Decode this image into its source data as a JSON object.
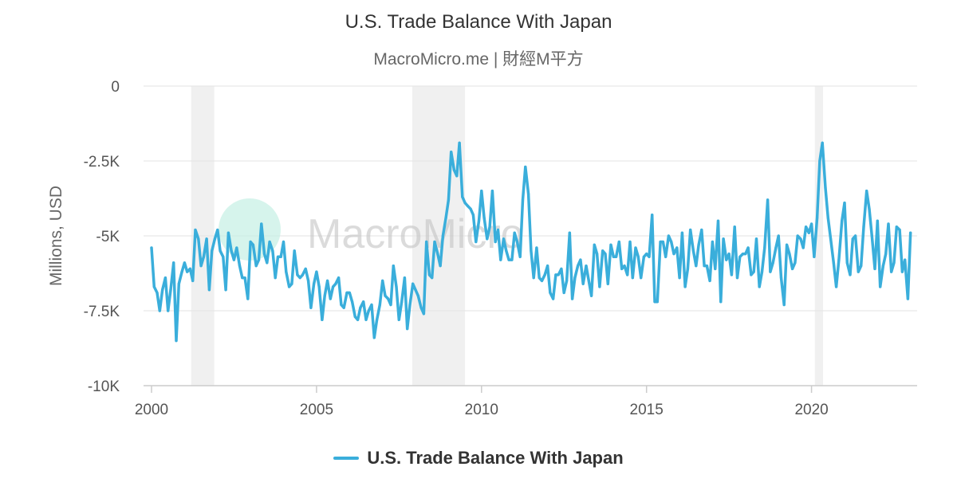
{
  "header": {
    "title": "U.S. Trade Balance With Japan",
    "subtitle": "MacroMicro.me | 財經M平方"
  },
  "watermark": {
    "text": "MacroMicro"
  },
  "legend": {
    "label": "U.S. Trade Balance With Japan"
  },
  "colors": {
    "series": "#3aaedb",
    "grid": "#e3e3e3",
    "recession": "#f0f0f0",
    "axis": "#cccccc",
    "logo": "#c8f0e6"
  },
  "chart_data": {
    "type": "line",
    "title": "U.S. Trade Balance With Japan",
    "subtitle": "MacroMicro.me | 財經M平方",
    "ylabel": "Millions, USD",
    "xlabel": "",
    "xlim": [
      2000,
      2023.2
    ],
    "ylim": [
      -10000,
      0
    ],
    "yticks": [
      0,
      -2500,
      -5000,
      -7500,
      -10000
    ],
    "ytick_labels": [
      "0",
      "-2.5K",
      "-5K",
      "-7.5K",
      "-10K"
    ],
    "xticks": [
      2000,
      2005,
      2010,
      2015,
      2020
    ],
    "xtick_labels": [
      "2000",
      "2005",
      "2010",
      "2015",
      "2020"
    ],
    "grid": true,
    "legend_position": "bottom-center",
    "recession_bands": [
      [
        2001.2,
        2001.9
      ],
      [
        2007.9,
        2009.5
      ],
      [
        2020.1,
        2020.35
      ]
    ],
    "series": [
      {
        "name": "U.S. Trade Balance With Japan",
        "x": [
          2000.0,
          2000.08,
          2000.17,
          2000.25,
          2000.33,
          2000.42,
          2000.5,
          2000.58,
          2000.67,
          2000.75,
          2000.83,
          2000.92,
          2001.0,
          2001.08,
          2001.17,
          2001.25,
          2001.33,
          2001.42,
          2001.5,
          2001.58,
          2001.67,
          2001.75,
          2001.83,
          2001.92,
          2002.0,
          2002.08,
          2002.17,
          2002.25,
          2002.33,
          2002.42,
          2002.5,
          2002.58,
          2002.67,
          2002.75,
          2002.83,
          2002.92,
          2003.0,
          2003.08,
          2003.17,
          2003.25,
          2003.33,
          2003.42,
          2003.5,
          2003.58,
          2003.67,
          2003.75,
          2003.83,
          2003.92,
          2004.0,
          2004.08,
          2004.17,
          2004.25,
          2004.33,
          2004.42,
          2004.5,
          2004.58,
          2004.67,
          2004.75,
          2004.83,
          2004.92,
          2005.0,
          2005.08,
          2005.17,
          2005.25,
          2005.33,
          2005.42,
          2005.5,
          2005.58,
          2005.67,
          2005.75,
          2005.83,
          2005.92,
          2006.0,
          2006.08,
          2006.17,
          2006.25,
          2006.33,
          2006.42,
          2006.5,
          2006.58,
          2006.67,
          2006.75,
          2006.83,
          2006.92,
          2007.0,
          2007.08,
          2007.17,
          2007.25,
          2007.33,
          2007.42,
          2007.5,
          2007.58,
          2007.67,
          2007.75,
          2007.83,
          2007.92,
          2008.0,
          2008.08,
          2008.17,
          2008.25,
          2008.33,
          2008.42,
          2008.5,
          2008.58,
          2008.67,
          2008.75,
          2008.83,
          2008.92,
          2009.0,
          2009.08,
          2009.17,
          2009.25,
          2009.33,
          2009.42,
          2009.5,
          2009.58,
          2009.67,
          2009.75,
          2009.83,
          2009.92,
          2010.0,
          2010.08,
          2010.17,
          2010.25,
          2010.33,
          2010.42,
          2010.5,
          2010.58,
          2010.67,
          2010.75,
          2010.83,
          2010.92,
          2011.0,
          2011.08,
          2011.17,
          2011.25,
          2011.33,
          2011.42,
          2011.5,
          2011.58,
          2011.67,
          2011.75,
          2011.83,
          2011.92,
          2012.0,
          2012.08,
          2012.17,
          2012.25,
          2012.33,
          2012.42,
          2012.5,
          2012.58,
          2012.67,
          2012.75,
          2012.83,
          2012.92,
          2013.0,
          2013.08,
          2013.17,
          2013.25,
          2013.33,
          2013.42,
          2013.5,
          2013.58,
          2013.67,
          2013.75,
          2013.83,
          2013.92,
          2014.0,
          2014.08,
          2014.17,
          2014.25,
          2014.33,
          2014.42,
          2014.5,
          2014.58,
          2014.67,
          2014.75,
          2014.83,
          2014.92,
          2015.0,
          2015.08,
          2015.17,
          2015.25,
          2015.33,
          2015.42,
          2015.5,
          2015.58,
          2015.67,
          2015.75,
          2015.83,
          2015.92,
          2016.0,
          2016.08,
          2016.17,
          2016.25,
          2016.33,
          2016.42,
          2016.5,
          2016.58,
          2016.67,
          2016.75,
          2016.83,
          2016.92,
          2017.0,
          2017.08,
          2017.17,
          2017.25,
          2017.33,
          2017.42,
          2017.5,
          2017.58,
          2017.67,
          2017.75,
          2017.83,
          2017.92,
          2018.0,
          2018.08,
          2018.17,
          2018.25,
          2018.33,
          2018.42,
          2018.5,
          2018.58,
          2018.67,
          2018.75,
          2018.83,
          2018.92,
          2019.0,
          2019.08,
          2019.17,
          2019.25,
          2019.33,
          2019.42,
          2019.5,
          2019.58,
          2019.67,
          2019.75,
          2019.83,
          2019.92,
          2020.0,
          2020.08,
          2020.17,
          2020.25,
          2020.33,
          2020.42,
          2020.5,
          2020.58,
          2020.67,
          2020.75,
          2020.83,
          2020.92,
          2021.0,
          2021.08,
          2021.17,
          2021.25,
          2021.33,
          2021.42,
          2021.5,
          2021.58,
          2021.67,
          2021.75,
          2021.83,
          2021.92,
          2022.0,
          2022.08,
          2022.17,
          2022.25,
          2022.33,
          2022.42,
          2022.5,
          2022.58,
          2022.67,
          2022.75,
          2022.83,
          2022.92,
          2023.0
        ],
        "values": [
          -5400,
          -6700,
          -6900,
          -7500,
          -6800,
          -6400,
          -7500,
          -6800,
          -5900,
          -8500,
          -6600,
          -6200,
          -5900,
          -6200,
          -6100,
          -6500,
          -4800,
          -5100,
          -6000,
          -5700,
          -5100,
          -6800,
          -5500,
          -5100,
          -4800,
          -5500,
          -5700,
          -6800,
          -4900,
          -5500,
          -5800,
          -5400,
          -6000,
          -6400,
          -6400,
          -7100,
          -5200,
          -5300,
          -6000,
          -5800,
          -4600,
          -5600,
          -5900,
          -5200,
          -5500,
          -6400,
          -5700,
          -5700,
          -5200,
          -6200,
          -6700,
          -6600,
          -5500,
          -6300,
          -6400,
          -6300,
          -6100,
          -6500,
          -7400,
          -6600,
          -6200,
          -6700,
          -7800,
          -7000,
          -6500,
          -7100,
          -6700,
          -6600,
          -6400,
          -7300,
          -7400,
          -6900,
          -6900,
          -7200,
          -7700,
          -7800,
          -7400,
          -7200,
          -7800,
          -7500,
          -7300,
          -8400,
          -7800,
          -7300,
          -6500,
          -7000,
          -7100,
          -7300,
          -6000,
          -6700,
          -7800,
          -7200,
          -6400,
          -8100,
          -7300,
          -6600,
          -6800,
          -7000,
          -7400,
          -7600,
          -5200,
          -6300,
          -6400,
          -5200,
          -5600,
          -6000,
          -5000,
          -4400,
          -3800,
          -2200,
          -2800,
          -3000,
          -1900,
          -3700,
          -3900,
          -4000,
          -4100,
          -4300,
          -5200,
          -4500,
          -3500,
          -4400,
          -5100,
          -4700,
          -3500,
          -5200,
          -4800,
          -5800,
          -5100,
          -5500,
          -5800,
          -5800,
          -4900,
          -5200,
          -5700,
          -3800,
          -2700,
          -3600,
          -5500,
          -6400,
          -5400,
          -6400,
          -6500,
          -6300,
          -6000,
          -6900,
          -7100,
          -6300,
          -6300,
          -6100,
          -6900,
          -6500,
          -4900,
          -7100,
          -6400,
          -6000,
          -5800,
          -6600,
          -6000,
          -6500,
          -7000,
          -5300,
          -5600,
          -6700,
          -5500,
          -5600,
          -6600,
          -5300,
          -5700,
          -5700,
          -5200,
          -6100,
          -6000,
          -6300,
          -5200,
          -6400,
          -5400,
          -5700,
          -6400,
          -5700,
          -5600,
          -5700,
          -4300,
          -7200,
          -7200,
          -5200,
          -5200,
          -5700,
          -5000,
          -5200,
          -5600,
          -5400,
          -6400,
          -4900,
          -6700,
          -6100,
          -4800,
          -5500,
          -6000,
          -5300,
          -4800,
          -6000,
          -6000,
          -6500,
          -5200,
          -6100,
          -4500,
          -7200,
          -5100,
          -5800,
          -5600,
          -6300,
          -4700,
          -6400,
          -5700,
          -5600,
          -5600,
          -5400,
          -6300,
          -6200,
          -5100,
          -6700,
          -6200,
          -5400,
          -3800,
          -6200,
          -5900,
          -5400,
          -5000,
          -6400,
          -7300,
          -5300,
          -5600,
          -6100,
          -5900,
          -5000,
          -5100,
          -5400,
          -4700,
          -4900,
          -4600,
          -5700,
          -4400,
          -2500,
          -1900,
          -3400,
          -4400,
          -5100,
          -5900,
          -6700,
          -5800,
          -4500,
          -3900,
          -5900,
          -6300,
          -5100,
          -5000,
          -6200,
          -6000,
          -4700,
          -3500,
          -4100,
          -5000,
          -6100,
          -4500,
          -6700,
          -6000,
          -5600,
          -4600,
          -6200,
          -5900,
          -4700,
          -4800,
          -6200,
          -5800,
          -7100,
          -4900
        ]
      }
    ]
  }
}
